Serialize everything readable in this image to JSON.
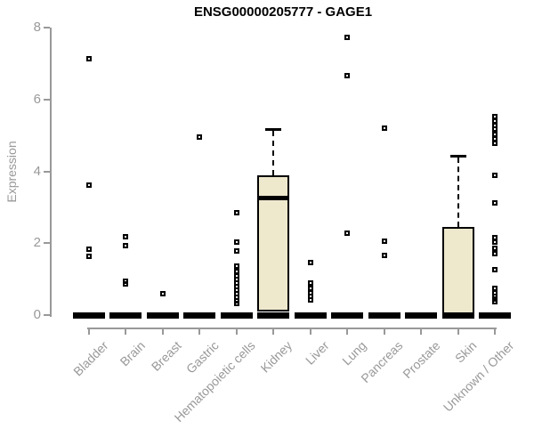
{
  "chart_data": {
    "type": "boxplot",
    "title": "ENSG00000205777 - GAGE1",
    "ylabel": "Expression",
    "xlabel": "",
    "ylim": [
      0,
      8
    ],
    "yticks": [
      0,
      2,
      4,
      6,
      8
    ],
    "grid": false,
    "legend": false,
    "colors": {
      "box_fill": "#EEE8CD",
      "box_border": "#000000",
      "axis": "#999999",
      "tick_label": "#999999",
      "title": "#000000",
      "point": "#000000",
      "zero_bar": "#000000"
    },
    "categories": [
      "Bladder",
      "Brain",
      "Breast",
      "Gastric",
      "Hematopoietic cells",
      "Kidney",
      "Liver",
      "Lung",
      "Pancreas",
      "Prostate",
      "Skin",
      "Unknown / Other"
    ],
    "series": [
      {
        "name": "Bladder",
        "median": 0,
        "box": null,
        "outliers": [
          7.13,
          3.62,
          1.83,
          1.63
        ]
      },
      {
        "name": "Brain",
        "median": 0,
        "box": null,
        "outliers": [
          2.18,
          1.93,
          0.95,
          0.86
        ]
      },
      {
        "name": "Breast",
        "median": 0,
        "box": null,
        "outliers": [
          0.6
        ]
      },
      {
        "name": "Gastric",
        "median": 0,
        "box": null,
        "outliers": [
          4.95
        ]
      },
      {
        "name": "Hematopoietic cells",
        "median": 0,
        "box": null,
        "outliers": [
          2.85,
          2.03,
          1.78,
          1.35,
          1.22,
          1.1,
          1.0,
          0.9,
          0.8,
          0.7,
          0.6,
          0.5,
          0.4,
          0.32
        ]
      },
      {
        "name": "Kidney",
        "median": 3.25,
        "box": {
          "q1": 0.1,
          "q3": 3.9,
          "whisker_high": 5.2,
          "whisker_low": 0
        },
        "outliers": []
      },
      {
        "name": "Liver",
        "median": 0,
        "box": null,
        "outliers": [
          1.45,
          0.9,
          0.75,
          0.62,
          0.52,
          0.42
        ]
      },
      {
        "name": "Lung",
        "median": 0,
        "box": null,
        "outliers": [
          7.72,
          6.66,
          2.27
        ]
      },
      {
        "name": "Pancreas",
        "median": 0,
        "box": null,
        "outliers": [
          5.2,
          2.05,
          1.65
        ]
      },
      {
        "name": "Prostate",
        "median": 0,
        "box": null,
        "outliers": []
      },
      {
        "name": "Skin",
        "median": 0,
        "box": {
          "q1": 0.02,
          "q3": 2.45,
          "whisker_high": 4.47,
          "whisker_low": 0
        },
        "outliers": []
      },
      {
        "name": "Unknown / Other",
        "median": 0,
        "box": null,
        "outliers": [
          5.52,
          5.4,
          5.28,
          5.17,
          5.02,
          4.9,
          4.78,
          3.9,
          3.12,
          2.15,
          2.02,
          1.85,
          1.72,
          1.27,
          0.74,
          0.62,
          0.52,
          0.44,
          0.36
        ]
      }
    ]
  }
}
